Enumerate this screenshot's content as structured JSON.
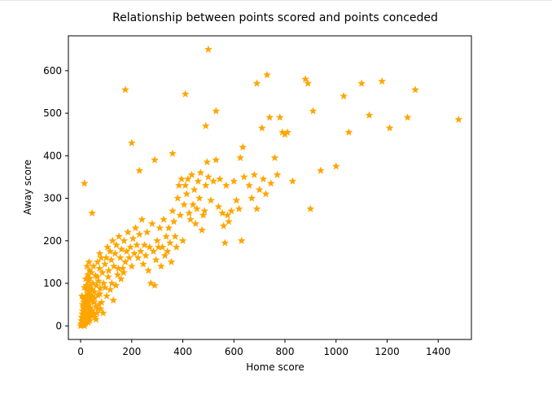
{
  "chart_data": {
    "type": "scatter",
    "title": "Relationship between points scored and points conceded",
    "xlabel": "Home score",
    "ylabel": "Away score",
    "xlim": [
      -48,
      1530
    ],
    "ylim": [
      -32,
      682
    ],
    "xticks": [
      0,
      200,
      400,
      600,
      800,
      1000,
      1200,
      1400
    ],
    "yticks": [
      0,
      100,
      200,
      300,
      400,
      500,
      600
    ],
    "grid": false,
    "marker": "star",
    "color": "#FFA500",
    "points": [
      [
        0,
        0
      ],
      [
        2,
        5
      ],
      [
        3,
        12
      ],
      [
        4,
        20
      ],
      [
        5,
        3
      ],
      [
        6,
        28
      ],
      [
        7,
        10
      ],
      [
        8,
        35
      ],
      [
        9,
        2
      ],
      [
        10,
        18
      ],
      [
        11,
        45
      ],
      [
        12,
        8
      ],
      [
        13,
        55
      ],
      [
        14,
        25
      ],
      [
        15,
        0
      ],
      [
        16,
        62
      ],
      [
        17,
        38
      ],
      [
        18,
        15
      ],
      [
        19,
        70
      ],
      [
        20,
        5
      ],
      [
        21,
        48
      ],
      [
        22,
        30
      ],
      [
        23,
        85
      ],
      [
        24,
        12
      ],
      [
        25,
        58
      ],
      [
        26,
        40
      ],
      [
        27,
        95
      ],
      [
        28,
        22
      ],
      [
        29,
        66
      ],
      [
        30,
        8
      ],
      [
        31,
        105
      ],
      [
        32,
        50
      ],
      [
        33,
        32
      ],
      [
        34,
        78
      ],
      [
        35,
        18
      ],
      [
        36,
        112
      ],
      [
        37,
        60
      ],
      [
        38,
        42
      ],
      [
        39,
        90
      ],
      [
        40,
        25
      ],
      [
        42,
        125
      ],
      [
        44,
        70
      ],
      [
        46,
        35
      ],
      [
        48,
        100
      ],
      [
        50,
        140
      ],
      [
        52,
        55
      ],
      [
        54,
        80
      ],
      [
        56,
        20
      ],
      [
        58,
        118
      ],
      [
        60,
        45
      ],
      [
        62,
        95
      ],
      [
        64,
        30
      ],
      [
        66,
        150
      ],
      [
        68,
        72
      ],
      [
        70,
        105
      ],
      [
        72,
        50
      ],
      [
        74,
        135
      ],
      [
        76,
        88
      ],
      [
        78,
        40
      ],
      [
        80,
        160
      ],
      [
        5,
        70
      ],
      [
        10,
        65
      ],
      [
        15,
        90
      ],
      [
        20,
        110
      ],
      [
        25,
        140
      ],
      [
        30,
        75
      ],
      [
        35,
        130
      ],
      [
        8,
        50
      ],
      [
        12,
        40
      ],
      [
        18,
        60
      ],
      [
        22,
        95
      ],
      [
        28,
        120
      ],
      [
        33,
        150
      ],
      [
        45,
        85
      ],
      [
        55,
        65
      ],
      [
        65,
        115
      ],
      [
        75,
        170
      ],
      [
        85,
        125
      ],
      [
        95,
        145
      ],
      [
        100,
        160
      ],
      [
        90,
        100
      ],
      [
        105,
        185
      ],
      [
        110,
        130
      ],
      [
        115,
        175
      ],
      [
        120,
        155
      ],
      [
        125,
        200
      ],
      [
        130,
        140
      ],
      [
        135,
        170
      ],
      [
        140,
        190
      ],
      [
        145,
        120
      ],
      [
        150,
        210
      ],
      [
        155,
        160
      ],
      [
        160,
        180
      ],
      [
        165,
        135
      ],
      [
        170,
        200
      ],
      [
        175,
        150
      ],
      [
        180,
        175
      ],
      [
        185,
        220
      ],
      [
        190,
        160
      ],
      [
        195,
        185
      ],
      [
        200,
        140
      ],
      [
        205,
        205
      ],
      [
        210,
        170
      ],
      [
        215,
        230
      ],
      [
        220,
        190
      ],
      [
        225,
        160
      ],
      [
        230,
        215
      ],
      [
        235,
        175
      ],
      [
        240,
        250
      ],
      [
        245,
        145
      ],
      [
        250,
        190
      ],
      [
        255,
        165
      ],
      [
        260,
        220
      ],
      [
        265,
        130
      ],
      [
        270,
        185
      ],
      [
        275,
        100
      ],
      [
        280,
        240
      ],
      [
        285,
        175
      ],
      [
        290,
        95
      ],
      [
        295,
        155
      ],
      [
        300,
        200
      ],
      [
        305,
        185
      ],
      [
        310,
        230
      ],
      [
        315,
        140
      ],
      [
        320,
        185
      ],
      [
        325,
        250
      ],
      [
        330,
        165
      ],
      [
        335,
        210
      ],
      [
        340,
        175
      ],
      [
        345,
        230
      ],
      [
        350,
        195
      ],
      [
        355,
        150
      ],
      [
        360,
        270
      ],
      [
        365,
        245
      ],
      [
        370,
        210
      ],
      [
        375,
        185
      ],
      [
        380,
        300
      ],
      [
        385,
        330
      ],
      [
        390,
        260
      ],
      [
        395,
        345
      ],
      [
        400,
        200
      ],
      [
        405,
        285
      ],
      [
        410,
        330
      ],
      [
        415,
        310
      ],
      [
        420,
        345
      ],
      [
        425,
        265
      ],
      [
        430,
        250
      ],
      [
        435,
        355
      ],
      [
        440,
        285
      ],
      [
        445,
        320
      ],
      [
        450,
        240
      ],
      [
        455,
        275
      ],
      [
        460,
        340
      ],
      [
        465,
        300
      ],
      [
        470,
        360
      ],
      [
        475,
        225
      ],
      [
        480,
        260
      ],
      [
        485,
        270
      ],
      [
        490,
        330
      ],
      [
        495,
        385
      ],
      [
        500,
        350
      ],
      [
        510,
        295
      ],
      [
        520,
        340
      ],
      [
        530,
        390
      ],
      [
        540,
        280
      ],
      [
        545,
        345
      ],
      [
        555,
        265
      ],
      [
        560,
        235
      ],
      [
        565,
        195
      ],
      [
        570,
        330
      ],
      [
        575,
        260
      ],
      [
        580,
        245
      ],
      [
        590,
        270
      ],
      [
        600,
        340
      ],
      [
        610,
        295
      ],
      [
        620,
        275
      ],
      [
        625,
        395
      ],
      [
        630,
        200
      ],
      [
        635,
        420
      ],
      [
        640,
        350
      ],
      [
        660,
        330
      ],
      [
        670,
        300
      ],
      [
        680,
        355
      ],
      [
        690,
        275
      ],
      [
        700,
        320
      ],
      [
        710,
        465
      ],
      [
        715,
        345
      ],
      [
        725,
        310
      ],
      [
        740,
        490
      ],
      [
        745,
        335
      ],
      [
        760,
        395
      ],
      [
        770,
        355
      ],
      [
        780,
        490
      ],
      [
        790,
        455
      ],
      [
        800,
        450
      ],
      [
        810,
        455
      ],
      [
        830,
        340
      ],
      [
        900,
        275
      ],
      [
        910,
        505
      ],
      [
        940,
        365
      ],
      [
        1000,
        375
      ],
      [
        1030,
        540
      ],
      [
        1050,
        455
      ],
      [
        1100,
        570
      ],
      [
        1130,
        495
      ],
      [
        1180,
        575
      ],
      [
        1210,
        465
      ],
      [
        1280,
        490
      ],
      [
        1310,
        555
      ],
      [
        1480,
        485
      ],
      [
        15,
        335
      ],
      [
        45,
        265
      ],
      [
        175,
        555
      ],
      [
        200,
        430
      ],
      [
        230,
        365
      ],
      [
        290,
        390
      ],
      [
        360,
        405
      ],
      [
        410,
        545
      ],
      [
        490,
        470
      ],
      [
        500,
        650
      ],
      [
        530,
        505
      ],
      [
        690,
        570
      ],
      [
        730,
        590
      ],
      [
        880,
        580
      ],
      [
        890,
        570
      ],
      [
        20,
        25
      ],
      [
        28,
        45
      ],
      [
        35,
        12
      ],
      [
        42,
        60
      ],
      [
        52,
        28
      ],
      [
        60,
        15
      ],
      [
        68,
        40
      ],
      [
        75,
        75
      ],
      [
        82,
        55
      ],
      [
        88,
        30
      ],
      [
        95,
        90
      ],
      [
        102,
        70
      ],
      [
        108,
        115
      ],
      [
        116,
        85
      ],
      [
        122,
        100
      ],
      [
        128,
        60
      ],
      [
        138,
        95
      ],
      [
        148,
        135
      ],
      [
        158,
        110
      ],
      [
        168,
        125
      ]
    ]
  }
}
